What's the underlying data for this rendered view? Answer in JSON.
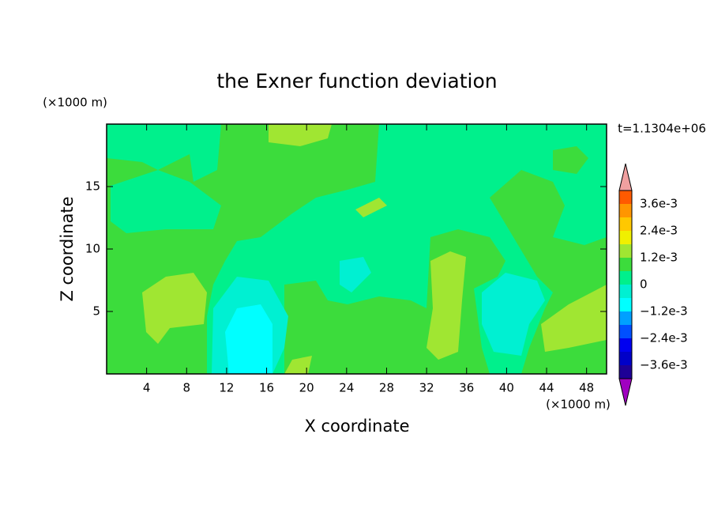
{
  "chart_data": {
    "type": "contour",
    "title": "the Exner function deviation",
    "xlabel": "X coordinate",
    "ylabel": "Z coordinate",
    "x_unit": "(×1000 m)",
    "y_unit": "(×1000 m)",
    "annotation": "t=1.1304e+06",
    "xlim": [
      0,
      50
    ],
    "xticks": [
      4,
      8,
      12,
      16,
      20,
      24,
      28,
      32,
      36,
      40,
      44,
      48
    ],
    "ylim": [
      0,
      20
    ],
    "yticks": [
      5,
      10,
      15
    ],
    "levels": [
      -0.0042,
      -0.0036,
      -0.003,
      -0.0024,
      -0.0018,
      -0.0012,
      -0.0006,
      0,
      0.0006,
      0.0012,
      0.0018,
      0.0024,
      0.003,
      0.0036,
      0.0042
    ],
    "colors": [
      "#1e0096",
      "#0000c8",
      "#0000f0",
      "#0050ff",
      "#00a0ff",
      "#00ffff",
      "#00f0d2",
      "#00f08c",
      "#3cdc3c",
      "#a0e632",
      "#f0f000",
      "#ffc800",
      "#ff9600",
      "#ff5a00",
      "#ff1e1e"
    ],
    "under_color": "#a000c0",
    "over_color": "#f0a0a0",
    "colorbar_ticks": [
      {
        "value": 0.0036,
        "label": "3.6e-3"
      },
      {
        "value": 0.0024,
        "label": "2.4e-3"
      },
      {
        "value": 0.0012,
        "label": "1.2e-3"
      },
      0,
      {
        "value": -0.0012,
        "label": "−1.2e-3"
      },
      {
        "value": -0.0024,
        "label": "−2.4e-3"
      },
      {
        "value": -0.0036,
        "label": "−3.6e-3"
      }
    ]
  }
}
